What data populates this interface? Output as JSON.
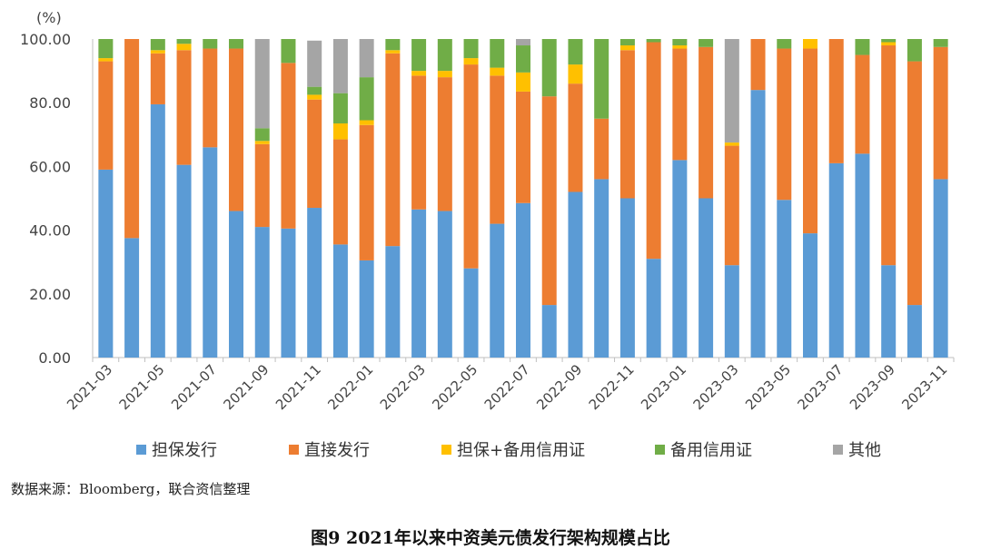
{
  "chart_data": {
    "type": "bar",
    "stacked": true,
    "ylabel": "(%)",
    "ylim": [
      0,
      100
    ],
    "yticks": [
      "0.00",
      "20.00",
      "40.00",
      "60.00",
      "80.00",
      "100.00"
    ],
    "grid": false,
    "legend_position": "bottom",
    "categories": [
      "2021-03",
      "2021-04",
      "2021-05",
      "2021-06",
      "2021-07",
      "2021-08",
      "2021-09",
      "2021-10",
      "2021-11",
      "2021-12",
      "2022-01",
      "2022-02",
      "2022-03",
      "2022-04",
      "2022-05",
      "2022-06",
      "2022-07",
      "2022-08",
      "2022-09",
      "2022-10",
      "2022-11",
      "2022-12",
      "2023-01",
      "2023-02",
      "2023-03",
      "2023-04",
      "2023-05",
      "2023-06",
      "2023-07",
      "2023-08",
      "2023-09",
      "2023-10",
      "2023-11"
    ],
    "xtick_labels": [
      "2021-03",
      "2021-05",
      "2021-07",
      "2021-09",
      "2021-11",
      "2022-01",
      "2022-03",
      "2022-05",
      "2022-07",
      "2022-09",
      "2022-11",
      "2023-01",
      "2023-03",
      "2023-05",
      "2023-07",
      "2023-09",
      "2023-11"
    ],
    "series": [
      {
        "name": "担保发行",
        "color": "#5B9BD5",
        "values": [
          59,
          37.5,
          79.5,
          60.5,
          66,
          46,
          41,
          40.5,
          47,
          35.5,
          30.5,
          35,
          46.5,
          46,
          28,
          42,
          48.5,
          16.5,
          52,
          56,
          50,
          31,
          62,
          50,
          29,
          84,
          49.5,
          39,
          61,
          64,
          29,
          16.5,
          56
        ]
      },
      {
        "name": "直接发行",
        "color": "#ED7D31",
        "values": [
          34,
          62.5,
          16,
          36,
          31,
          51,
          26,
          52,
          34,
          33,
          42.5,
          60.5,
          42,
          42,
          64,
          46.5,
          35,
          65.5,
          34,
          19,
          46.5,
          68,
          35,
          47.5,
          37.5,
          16,
          47.5,
          58,
          39,
          31,
          69,
          76.5,
          41.5
        ]
      },
      {
        "name": "担保+备用信用证",
        "color": "#FFC000",
        "values": [
          1,
          0,
          1,
          2,
          0,
          0,
          1,
          0,
          1.5,
          5,
          1.5,
          1,
          1.5,
          2,
          2,
          2.5,
          6,
          0,
          6,
          0,
          1.5,
          0,
          1,
          0,
          1,
          0,
          0,
          3,
          0,
          0,
          1,
          0,
          0
        ]
      },
      {
        "name": "备用信用证",
        "color": "#70AD47",
        "values": [
          6,
          0,
          3.5,
          1.5,
          3,
          3,
          4,
          7.5,
          2.5,
          9.5,
          13.5,
          3.5,
          10,
          10,
          6,
          9,
          8.5,
          18,
          8,
          25,
          2,
          1,
          2,
          2.5,
          0,
          0,
          3,
          0,
          0,
          5,
          1,
          7,
          2.5
        ]
      },
      {
        "name": "其他",
        "color": "#A5A5A5",
        "values": [
          0,
          0,
          0,
          0,
          0,
          0,
          28,
          0,
          14.5,
          17,
          12,
          0,
          0,
          0,
          0,
          0,
          2,
          0,
          0,
          0,
          0,
          0,
          0,
          0,
          32.5,
          0,
          0,
          0,
          0,
          0,
          0,
          0,
          0
        ]
      }
    ]
  },
  "source_note": "数据来源：Bloomberg，联合资信整理",
  "figure_title": "图9    2021年以来中资美元债发行架构规模占比"
}
